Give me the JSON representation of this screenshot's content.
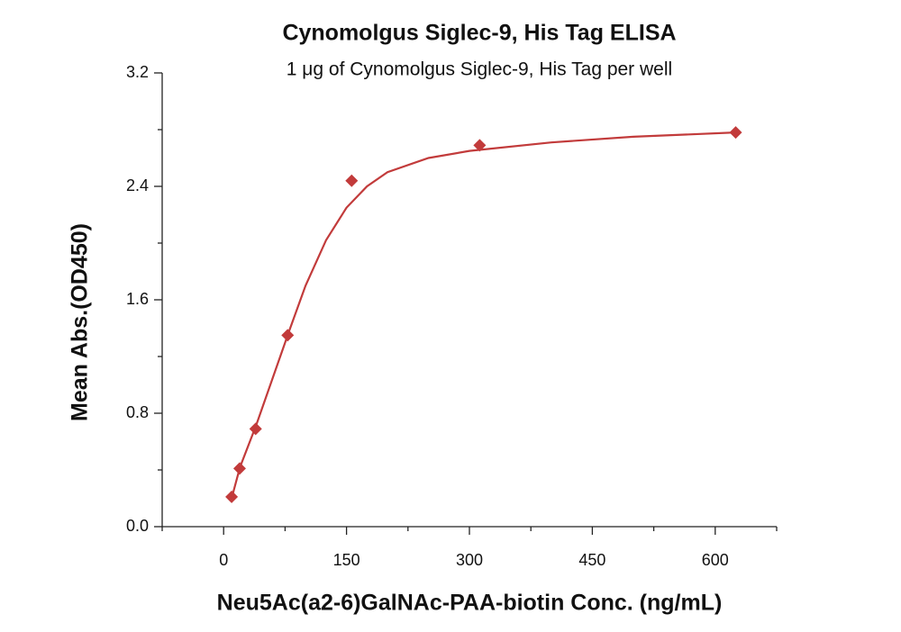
{
  "chart_data": {
    "type": "scatter",
    "title": "Cynomolgus Siglec-9, His Tag ELISA",
    "subtitle": "1 μg of Cynomolgus Siglec-9, His Tag per well",
    "x_label": "Neu5Ac(a2-6)GalNAc-PAA-biotin Conc. (ng/mL)",
    "y_label": "Mean Abs.(OD450)",
    "xlim": [
      -75,
      675
    ],
    "ylim": [
      0,
      3.2
    ],
    "xticks": [
      0,
      150,
      300,
      450,
      600
    ],
    "xminorticks": [
      -75,
      75,
      225,
      375,
      525,
      675
    ],
    "yticks": [
      {
        "value": 0,
        "label": "0.0"
      },
      0.8,
      1.6,
      2.4,
      3.2
    ],
    "yminorticks": [
      0.4,
      1.2,
      2.0,
      2.8
    ],
    "color": "#c23b3b",
    "series": [
      {
        "x": [
          9.77,
          19.53,
          39.06,
          78.13,
          156.25,
          312.5,
          625
        ],
        "values": [
          0.21,
          0.41,
          0.69,
          1.35,
          2.44,
          2.69,
          2.78
        ]
      },
      {
        "line": true,
        "x": [
          9.77,
          20,
          40,
          60,
          80,
          100,
          125,
          150,
          175,
          200,
          250,
          300,
          400,
          500,
          625
        ],
        "values": [
          0.2,
          0.42,
          0.72,
          1.05,
          1.38,
          1.7,
          2.02,
          2.25,
          2.4,
          2.5,
          2.6,
          2.65,
          2.71,
          2.75,
          2.78
        ]
      }
    ]
  }
}
